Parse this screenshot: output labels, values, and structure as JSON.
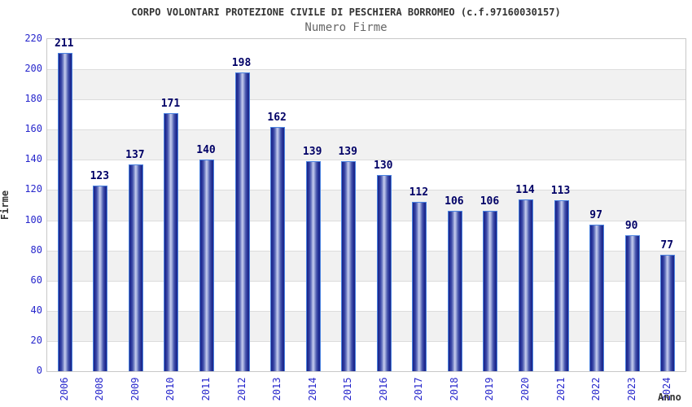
{
  "header": {
    "title": "CORPO VOLONTARI PROTEZIONE CIVILE DI PESCHIERA BORROMEO (c.f.97160030157)",
    "subtitle": "Numero Firme"
  },
  "chart_data": {
    "type": "bar",
    "title": "CORPO VOLONTARI PROTEZIONE CIVILE DI PESCHIERA BORROMEO (c.f.97160030157)",
    "subtitle": "Numero Firme",
    "xlabel": "Anno",
    "ylabel": "Firme",
    "categories": [
      "2006",
      "2008",
      "2009",
      "2010",
      "2011",
      "2012",
      "2013",
      "2014",
      "2015",
      "2016",
      "2017",
      "2018",
      "2019",
      "2020",
      "2021",
      "2022",
      "2023",
      "2024"
    ],
    "values": [
      211,
      123,
      137,
      171,
      140,
      198,
      162,
      139,
      139,
      130,
      112,
      106,
      106,
      114,
      113,
      97,
      90,
      77
    ],
    "ylim": [
      0,
      220
    ],
    "ytick_step": 20,
    "grid": "horizontal-bands",
    "legend": "none",
    "colors": {
      "bar_edge": "#4a82e0",
      "bar_dark": "#1b2584",
      "bar_light": "#c6cdee",
      "value_label": "#000066",
      "tick_label": "#2727cc",
      "band_gray": "#f1f1f1",
      "grid_line": "#dcdcdc",
      "title": "#333333",
      "subtitle": "#666666"
    }
  }
}
